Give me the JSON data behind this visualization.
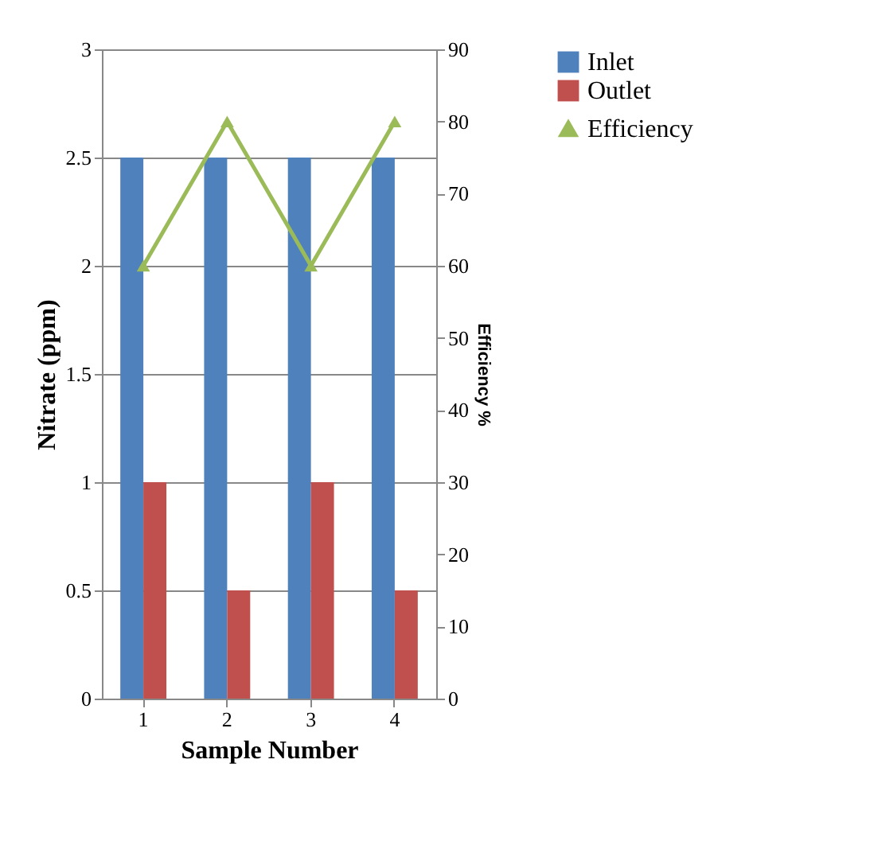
{
  "chart_data": {
    "type": "bar",
    "xlabel": "Sample Number",
    "ylabel": "Nitrate (ppm)",
    "y2label": "Efficiency %",
    "categories": [
      "1",
      "2",
      "3",
      "4"
    ],
    "series": [
      {
        "name": "Inlet",
        "color": "#4f81bd",
        "values": [
          2.5,
          2.5,
          2.5,
          2.5
        ]
      },
      {
        "name": "Outlet",
        "color": "#c0504d",
        "values": [
          1,
          0.5,
          1,
          0.5
        ]
      },
      {
        "name": "Efficiency",
        "type": "line",
        "axis": "y2",
        "color": "#9bbb59",
        "marker": "triangle",
        "values": [
          60,
          80,
          60,
          80
        ]
      }
    ],
    "ylim": [
      0,
      3
    ],
    "yticks": [
      0,
      0.5,
      1,
      1.5,
      2,
      2.5,
      3
    ],
    "y2lim": [
      0,
      90
    ],
    "y2ticks": [
      0,
      10,
      20,
      30,
      40,
      50,
      60,
      70,
      80,
      90
    ],
    "grid": "y",
    "legend": "right"
  }
}
